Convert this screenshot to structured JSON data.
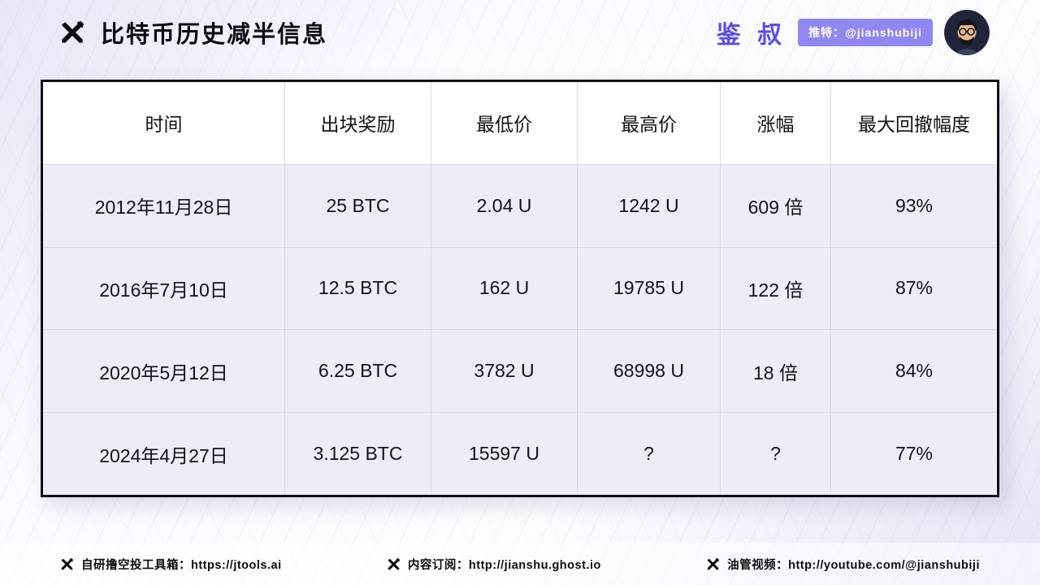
{
  "header": {
    "title": "比特币历史减半信息",
    "brand": "鉴 叔",
    "badge": "推特：@jianshubiji"
  },
  "chart_data": {
    "type": "table",
    "title": "比特币历史减半信息",
    "columns": [
      "时间",
      "出块奖励",
      "最低价",
      "最高价",
      "涨幅",
      "最大回撤幅度"
    ],
    "rows": [
      [
        "2012年11月28日",
        "25 BTC",
        "2.04 U",
        "1242 U",
        "609 倍",
        "93%"
      ],
      [
        "2016年7月10日",
        "12.5 BTC",
        "162 U",
        "19785 U",
        "122 倍",
        "87%"
      ],
      [
        "2020年5月12日",
        "6.25 BTC",
        "3782 U",
        "68998 U",
        "18 倍",
        "84%"
      ],
      [
        "2024年4月27日",
        "3.125 BTC",
        "15597 U",
        "?",
        "?",
        "77%"
      ]
    ]
  },
  "footer": {
    "items": [
      "自研撸空投工具箱：https://jtools.ai",
      "内容订阅：http://jianshu.ghost.io",
      "油管视频：http://youtube.com/@jianshubiji"
    ]
  },
  "colors": {
    "accent": "#5b4de6",
    "badge_bg": "#9087f0",
    "row_bg": "#efecf9",
    "table_border": "#0f0f14"
  }
}
